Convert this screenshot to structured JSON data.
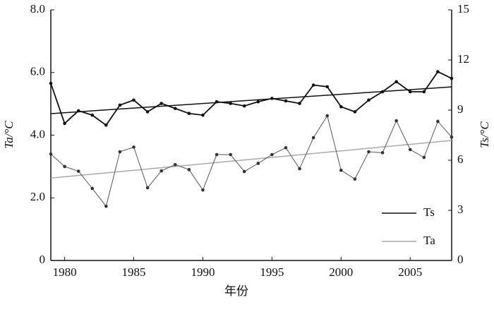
{
  "chart_data": {
    "type": "line",
    "xlabel": "年份",
    "ylabel": "Ta/°C",
    "y2label": "Ts/°C",
    "x": [
      1979,
      1980,
      1981,
      1982,
      1983,
      1984,
      1985,
      1986,
      1987,
      1988,
      1989,
      1990,
      1991,
      1992,
      1993,
      1994,
      1995,
      1996,
      1997,
      1998,
      1999,
      2000,
      2001,
      2002,
      2003,
      2004,
      2005,
      2006,
      2007,
      2008
    ],
    "series": [
      {
        "name": "Ts",
        "color": "#111111",
        "axis": "y2",
        "values": [
          10.6,
          8.2,
          8.96,
          8.7,
          8.1,
          9.3,
          9.6,
          8.9,
          9.4,
          9.1,
          8.8,
          8.7,
          9.5,
          9.4,
          9.25,
          9.5,
          9.7,
          9.55,
          9.4,
          10.5,
          10.4,
          9.2,
          8.9,
          9.6,
          10.1,
          10.7,
          10.1,
          10.1,
          11.3,
          10.9
        ],
        "trend": [
          8.79,
          10.39
        ]
      },
      {
        "name": "Ta",
        "color": "#555555",
        "legend_color": "#aaaaaa",
        "axis": "y",
        "values": [
          3.4,
          3.0,
          2.85,
          2.3,
          1.73,
          3.47,
          3.62,
          2.32,
          2.86,
          3.06,
          2.9,
          2.25,
          3.38,
          3.38,
          2.84,
          3.1,
          3.38,
          3.6,
          2.93,
          3.92,
          4.62,
          2.88,
          2.6,
          3.47,
          3.44,
          4.46,
          3.54,
          3.29,
          4.44,
          3.94
        ],
        "trend": [
          2.63,
          3.83
        ]
      }
    ],
    "xlim": [
      1979,
      2008
    ],
    "xticks": [
      1980,
      1985,
      1990,
      1995,
      2000,
      2005
    ],
    "ylim": [
      0,
      8
    ],
    "yticks": [
      0,
      {
        "value": 2,
        "label": "2.0"
      },
      {
        "value": 4,
        "label": "4.0"
      },
      {
        "value": 6,
        "label": "6.0"
      },
      {
        "value": 8,
        "label": "8.0"
      }
    ],
    "y2lim": [
      0,
      15
    ],
    "y2ticks": [
      0,
      3,
      6,
      9,
      12,
      15
    ],
    "legend": "lower right"
  }
}
